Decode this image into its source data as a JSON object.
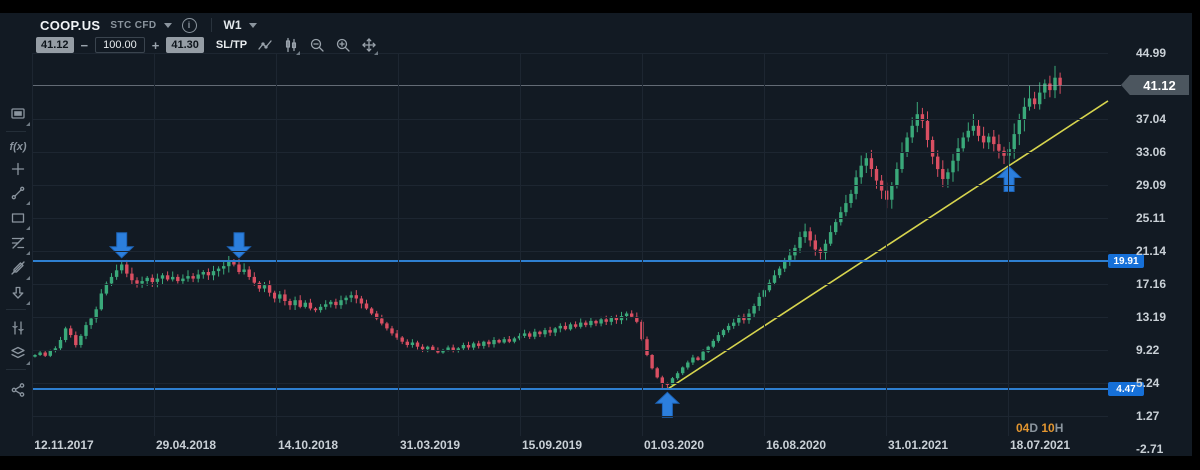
{
  "toolbar": {
    "symbol": "COOP.US",
    "instrument_type": "STC CFD",
    "period": "W1",
    "sell_price": "41.12",
    "minus": "−",
    "volume": "100.00",
    "plus": "+",
    "buy_price": "41.30",
    "sltp_label": "SL/TP"
  },
  "sidebar": {
    "indicators_label": "f(x)"
  },
  "chart_data": {
    "type": "candlestick",
    "symbol": "COOP.US",
    "period": "W1",
    "current_price": 41.12,
    "current_price_label": "41.12",
    "y_axis_values": [
      44.99,
      37.04,
      33.06,
      29.09,
      25.11,
      21.14,
      17.16,
      13.19,
      9.22,
      5.24,
      1.27,
      -2.71
    ],
    "y_axis_labels": [
      "44.99",
      "37.04",
      "33.06",
      "29.09",
      "25.11",
      "21.14",
      "17.16",
      "13.19",
      "9.22",
      "5.24",
      "1.27",
      "-2.71"
    ],
    "x_axis_labels": [
      "12.11.2017",
      "29.04.2018",
      "14.10.2018",
      "31.03.2019",
      "15.09.2019",
      "01.03.2020",
      "16.08.2020",
      "31.01.2021",
      "18.07.2021"
    ],
    "closes": [
      8.6,
      8.9,
      8.5,
      9.1,
      9.4,
      10.4,
      11.8,
      11.0,
      9.8,
      10.9,
      12.2,
      13.0,
      14.1,
      16.0,
      17.2,
      18.0,
      18.8,
      19.5,
      18.4,
      17.6,
      17.2,
      17.5,
      17.9,
      17.4,
      17.8,
      18.2,
      17.7,
      18.0,
      17.5,
      17.8,
      18.1,
      17.8,
      18.3,
      18.6,
      18.2,
      18.7,
      19.0,
      19.3,
      19.8,
      19.5,
      18.6,
      18.9,
      18.0,
      17.3,
      16.6,
      17.0,
      16.1,
      15.4,
      15.9,
      15.1,
      14.6,
      15.2,
      14.4,
      14.9,
      14.2,
      14.0,
      14.4,
      14.7,
      15.0,
      14.6,
      15.2,
      15.5,
      15.8,
      15.4,
      14.8,
      14.2,
      13.6,
      13.0,
      12.4,
      11.8,
      11.2,
      10.7,
      10.2,
      9.8,
      10.1,
      9.6,
      9.3,
      9.6,
      9.2,
      8.9,
      9.2,
      9.5,
      9.1,
      9.4,
      9.8,
      9.5,
      10.0,
      9.7,
      10.2,
      9.9,
      10.4,
      10.1,
      10.5,
      10.2,
      10.6,
      10.9,
      11.2,
      10.8,
      11.4,
      11.1,
      11.6,
      11.3,
      11.8,
      12.1,
      11.7,
      12.3,
      12.0,
      12.5,
      12.2,
      12.7,
      12.4,
      12.9,
      12.6,
      13.1,
      12.8,
      13.3,
      13.6,
      13.2,
      12.6,
      10.5,
      8.6,
      7.0,
      5.9,
      5.2,
      5.0,
      5.8,
      6.4,
      7.1,
      7.7,
      8.3,
      8.0,
      9.0,
      9.6,
      10.3,
      11.0,
      11.6,
      12.1,
      12.5,
      13.2,
      12.8,
      13.6,
      14.5,
      15.6,
      16.4,
      17.3,
      18.2,
      19.0,
      19.8,
      20.6,
      21.5,
      22.8,
      23.5,
      22.4,
      21.3,
      20.9,
      22.0,
      23.4,
      24.6,
      25.8,
      26.9,
      28.0,
      30.0,
      31.4,
      32.3,
      31.0,
      29.6,
      28.4,
      27.3,
      29.0,
      31.0,
      33.0,
      34.8,
      36.2,
      37.6,
      36.8,
      34.5,
      32.5,
      31.0,
      29.8,
      30.6,
      32.0,
      33.5,
      34.8,
      35.6,
      36.2,
      35.0,
      34.2,
      34.9,
      34.0,
      33.2,
      32.6,
      33.4,
      35.2,
      37.0,
      38.5,
      39.5,
      38.8,
      40.2,
      41.3,
      40.5,
      42.0,
      41.12
    ],
    "first_open": 8.4,
    "wick_overrides": {
      "17": {
        "high": 19.95
      },
      "40": {
        "high": 20.15
      },
      "123": {
        "low": 4.6
      },
      "124": {
        "low": 4.47
      }
    },
    "key_levels": [
      {
        "label": "19.91",
        "price": 19.91
      },
      {
        "label": "4.47",
        "price": 4.47
      }
    ],
    "trendline": {
      "from_index": 124,
      "from_price": 4.47,
      "to_price": 39.2
    },
    "arrows": [
      {
        "direction": "down",
        "index": 17,
        "tip_price": 20.3
      },
      {
        "direction": "down",
        "index": 40,
        "tip_price": 20.3
      },
      {
        "direction": "up",
        "index": 124,
        "tip_price": 4.1
      },
      {
        "direction": "up",
        "index": 191,
        "tip_price": 31.3
      }
    ],
    "candle_countdown": {
      "days": "04",
      "days_unit": "D",
      "hours": "10",
      "hours_unit": "H"
    },
    "colors": {
      "up": "#3aa97a",
      "down": "#d94f62",
      "level_line": "#2e7fd0",
      "level_badge": "#1670d8",
      "trendline": "#d6d44e",
      "arrow_fill": "#2c7fdd",
      "arrow_stroke": "#1d64b8",
      "price_tag_bg": "#4c565f"
    }
  }
}
